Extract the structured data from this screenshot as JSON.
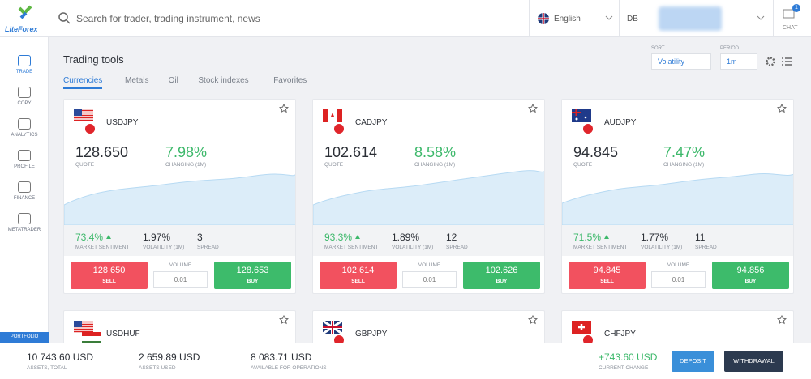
{
  "header": {
    "logo": "LiteForex",
    "search_placeholder": "Search for trader, trading instrument, news",
    "language": "English",
    "account": "DB",
    "chat": "CHAT",
    "chat_badge": "1"
  },
  "sidebar": {
    "items": [
      "TRADE",
      "COPY",
      "ANALYTICS",
      "PROFILE",
      "FINANCE",
      "METATRADER"
    ],
    "portfolio": "PORTFOLIO"
  },
  "page": {
    "title": "Trading tools",
    "tabs": [
      "Currencies",
      "Metals",
      "Oil",
      "Stock indexes",
      "Favorites"
    ],
    "sort_label": "SORT",
    "sort_value": "Volatility",
    "period_label": "PERIOD",
    "period_value": "1m"
  },
  "labels": {
    "quote": "QUOTE",
    "change": "CHANGING (1M)",
    "sentiment": "MARKET SENTIMENT",
    "volatility": "VOLATILITY (1M)",
    "spread": "SPREAD",
    "volume": "VOLUME",
    "sell": "SELL",
    "buy": "BUY"
  },
  "cards": [
    {
      "symbol": "USDJPY",
      "quote": "128.650",
      "change": "7.98%",
      "sentiment": "73.4%",
      "volatility": "1.97%",
      "spread": "3",
      "sell": "128.650",
      "buy": "128.653",
      "volume": "0.01"
    },
    {
      "symbol": "CADJPY",
      "quote": "102.614",
      "change": "8.58%",
      "sentiment": "93.3%",
      "volatility": "1.89%",
      "spread": "12",
      "sell": "102.614",
      "buy": "102.626",
      "volume": "0.01"
    },
    {
      "symbol": "AUDJPY",
      "quote": "94.845",
      "change": "7.47%",
      "sentiment": "71.5%",
      "volatility": "1.77%",
      "spread": "11",
      "sell": "94.845",
      "buy": "94.856",
      "volume": "0.01"
    }
  ],
  "more_cards": [
    {
      "symbol": "USDHUF"
    },
    {
      "symbol": "GBPJPY"
    },
    {
      "symbol": "CHFJPY"
    }
  ],
  "footer": {
    "stats": [
      {
        "value": "10 743.60 USD",
        "label": "ASSETS, TOTAL"
      },
      {
        "value": "2 659.89 USD",
        "label": "ASSETS USED"
      },
      {
        "value": "8 083.71 USD",
        "label": "AVAILABLE FOR OPERATIONS"
      }
    ],
    "change": {
      "value": "+743.60 USD",
      "label": "CURRENT CHANGE"
    },
    "deposit": "DEPOSIT",
    "withdrawal": "WITHDRAWAL"
  }
}
